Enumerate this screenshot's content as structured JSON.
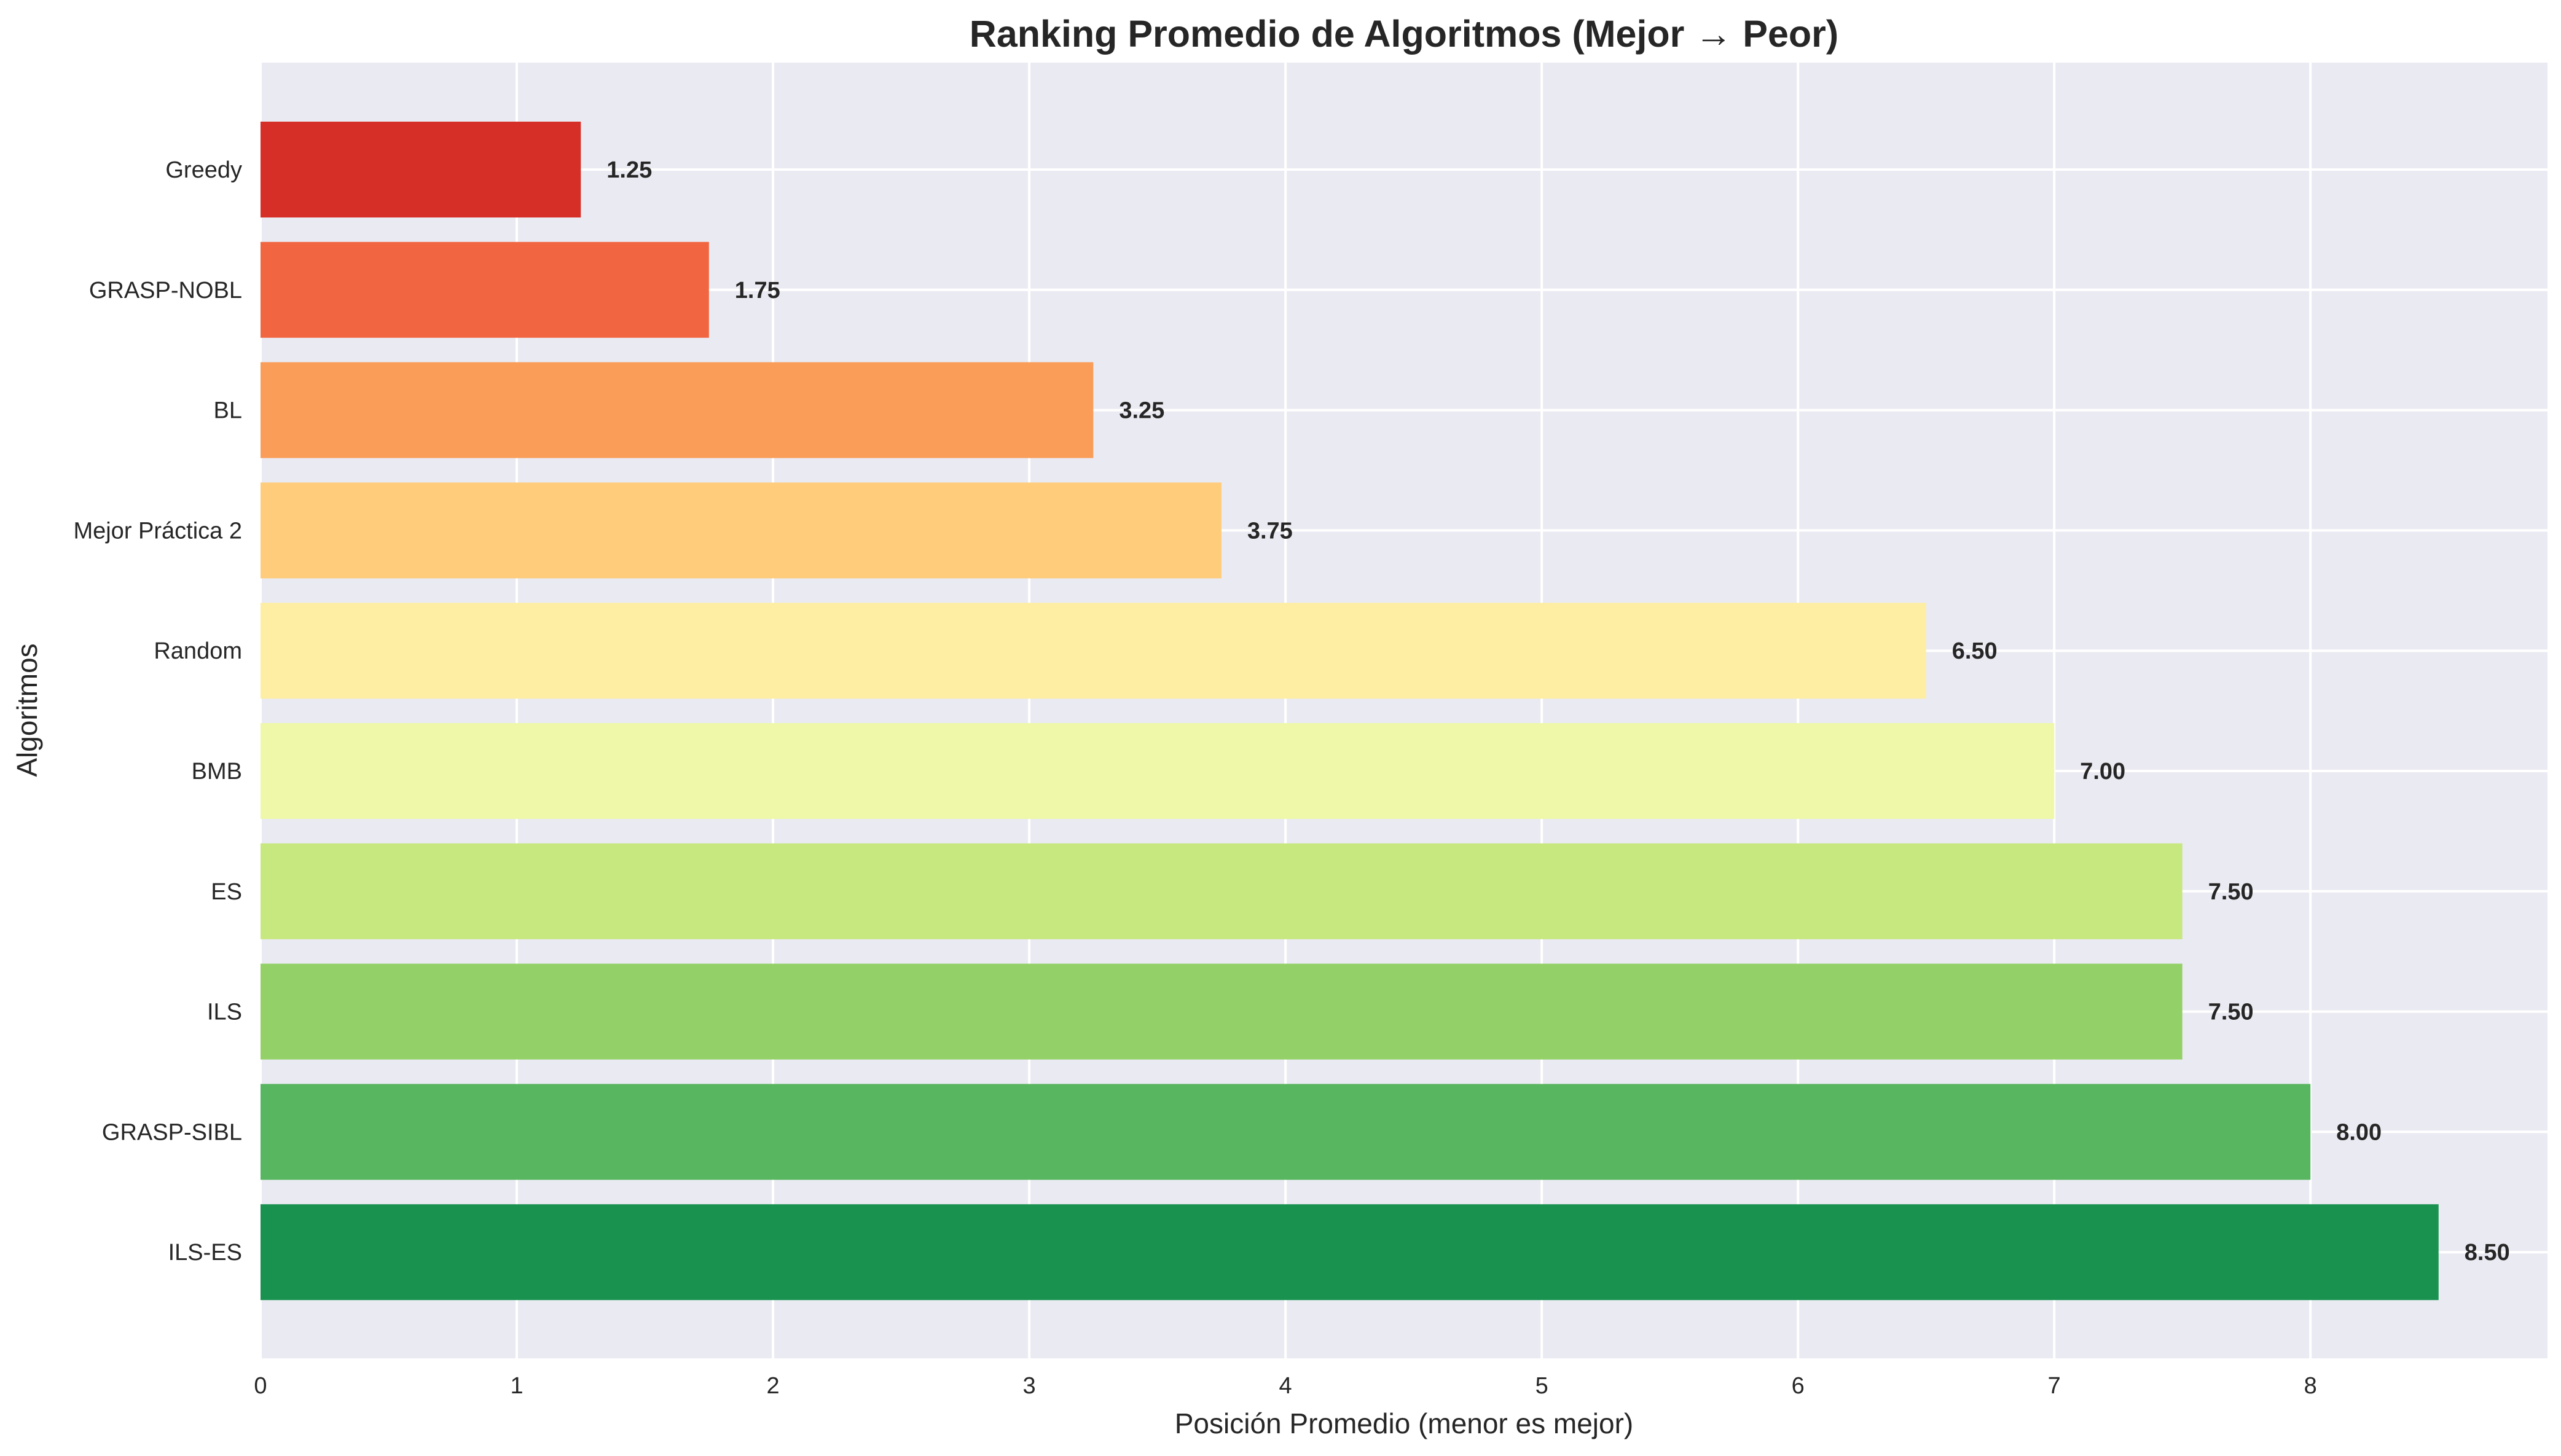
{
  "chart_data": {
    "type": "bar",
    "orientation": "horizontal",
    "title": "Ranking Promedio de Algoritmos (Mejor → Peor)",
    "xlabel": "Posición Promedio (menor es mejor)",
    "ylabel": "Algoritmos",
    "xlim": [
      0,
      8.925
    ],
    "xticks": [
      0,
      1,
      2,
      3,
      4,
      5,
      6,
      7,
      8
    ],
    "grid": true,
    "categories": [
      "Greedy",
      "GRASP-NOBL",
      "BL",
      "Mejor Práctica 2",
      "Random",
      "BMB",
      "ES",
      "ILS",
      "GRASP-SIBL",
      "ILS-ES"
    ],
    "values": [
      1.25,
      1.75,
      3.25,
      3.75,
      6.5,
      7.0,
      7.5,
      7.5,
      8.0,
      8.5
    ],
    "value_labels": [
      "1.25",
      "1.75",
      "3.25",
      "3.75",
      "6.50",
      "7.00",
      "7.50",
      "7.50",
      "8.00",
      "8.50"
    ],
    "colors": [
      "#d62f27",
      "#f16640",
      "#f99d59",
      "#fecc7b",
      "#feeea3",
      "#eef8a8",
      "#c7e77f",
      "#93d168",
      "#57b65f",
      "#19924f"
    ]
  }
}
